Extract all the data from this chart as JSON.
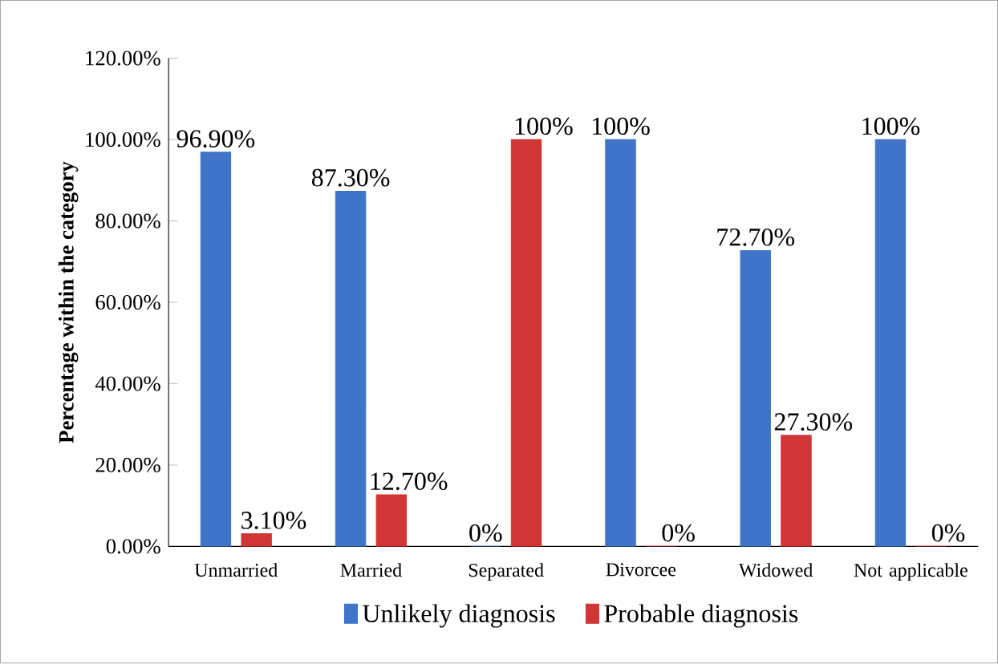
{
  "chart_data": {
    "type": "bar",
    "ylabel": "Percentage within the category",
    "categories": [
      "Unmarried",
      "Married",
      "Separated",
      "Divorcee",
      "Widowed",
      "Not applicable"
    ],
    "series": [
      {
        "name": "Unlikely diagnosis",
        "color": "#3f74c8",
        "values": [
          96.9,
          87.3,
          0,
          100,
          72.7,
          100
        ],
        "value_labels": [
          "96.90%",
          "87.30%",
          "0%",
          "100%",
          "72.70%",
          "100%"
        ]
      },
      {
        "name": "Probable diagnosis",
        "color": "#d03636",
        "values": [
          3.1,
          12.7,
          100,
          0,
          27.3,
          0
        ],
        "value_labels": [
          "3.10%",
          "12.70%",
          "100%",
          "0%",
          "27.30%",
          "0%"
        ]
      }
    ],
    "ylim": [
      0,
      120
    ],
    "yticks": [
      {
        "value": 0,
        "label": "0.00%"
      },
      {
        "value": 20,
        "label": "20.00%"
      },
      {
        "value": 40,
        "label": "40.00%"
      },
      {
        "value": 60,
        "label": "60.00%"
      },
      {
        "value": 80,
        "label": "80.00%"
      },
      {
        "value": 100,
        "label": "100.00%"
      },
      {
        "value": 120,
        "label": "120.00%"
      }
    ],
    "grid": false,
    "legend": "bottom"
  }
}
